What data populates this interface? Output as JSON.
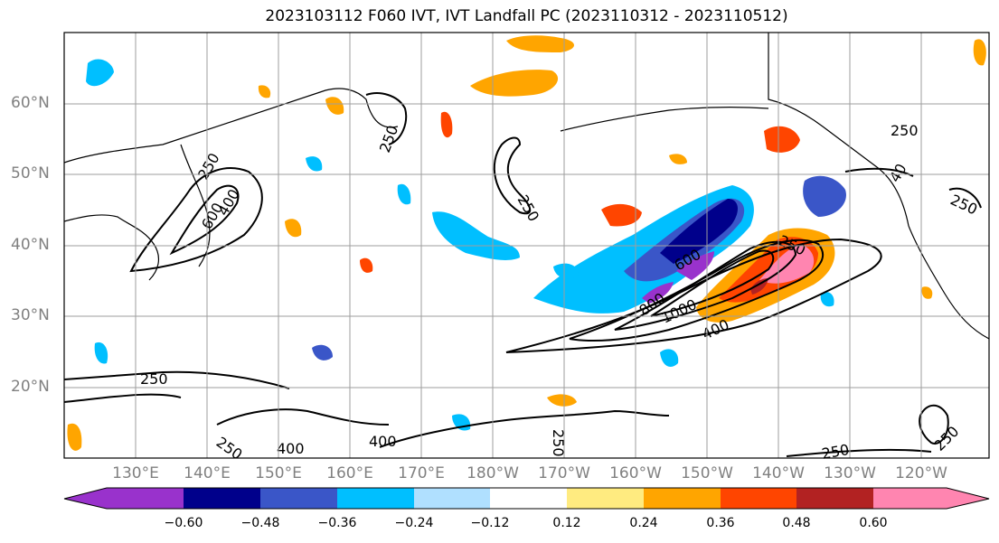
{
  "title": "2023103112 F060 IVT, IVT Landfall PC (2023110312 - 2023110512)",
  "lat_labels": [
    "60°N",
    "50°N",
    "40°N",
    "30°N",
    "20°N"
  ],
  "lon_labels": [
    "130°E",
    "140°E",
    "150°E",
    "160°E",
    "170°E",
    "180°W",
    "170°W",
    "160°W",
    "150°W",
    "140°W",
    "130°W",
    "120°W"
  ],
  "contour_labels": [
    {
      "id": "c250-asia",
      "text": "250"
    },
    {
      "id": "c600-asia",
      "text": "600"
    },
    {
      "id": "c400-asia",
      "text": "400"
    },
    {
      "id": "c250-bering",
      "text": "250"
    },
    {
      "id": "c250-npac",
      "text": "250"
    },
    {
      "id": "c250-west",
      "text": "250"
    },
    {
      "id": "c250-south",
      "text": "250"
    },
    {
      "id": "c400-south",
      "text": "400"
    },
    {
      "id": "c400-south2",
      "text": "400"
    },
    {
      "id": "c250-date",
      "text": "250"
    },
    {
      "id": "c600-core",
      "text": "600"
    },
    {
      "id": "c800-core",
      "text": "800"
    },
    {
      "id": "c1000-core",
      "text": "1000"
    },
    {
      "id": "c400-core",
      "text": "400"
    },
    {
      "id": "c250-ne",
      "text": "250"
    },
    {
      "id": "c250-coast",
      "text": "250"
    },
    {
      "id": "c250-se",
      "text": "250"
    },
    {
      "id": "c250-sw",
      "text": "250"
    },
    {
      "id": "c250-far",
      "text": "250"
    },
    {
      "id": "c40-alaska",
      "text": "40"
    }
  ],
  "colorbar": {
    "labels": [
      "−0.60",
      "−0.48",
      "−0.36",
      "−0.24",
      "−0.12",
      "0.12",
      "0.24",
      "0.36",
      "0.48",
      "0.60"
    ],
    "colors": [
      "#9932cc",
      "#00008b",
      "#3a56c8",
      "#00bfff",
      "#b0e0ff",
      "#ffffff",
      "#ffeb80",
      "#ffa500",
      "#ff4500",
      "#b22222",
      "#ff85b0",
      "#ff85b0"
    ]
  },
  "colors": {
    "purple": "#9932cc",
    "navy": "#00008b",
    "royal": "#3a56c8",
    "sky": "#00bfff",
    "pale_blue": "#b0e0ff",
    "yellow": "#ffeb80",
    "orange": "#ffa500",
    "red_orange": "#ff4500",
    "dark_red": "#b22222",
    "pink": "#ff85b0"
  }
}
